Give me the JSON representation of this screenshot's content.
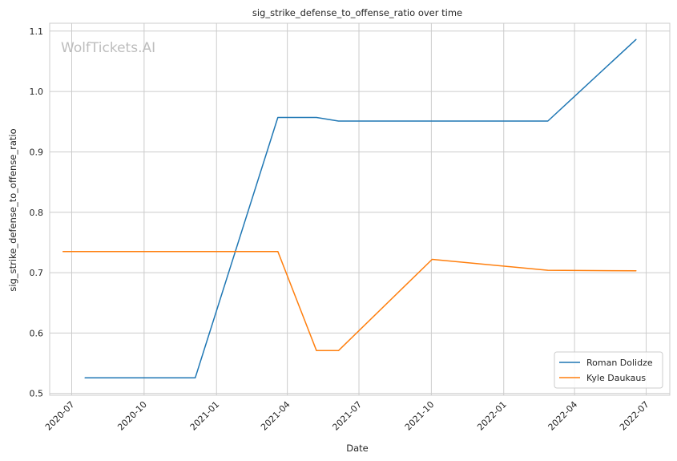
{
  "watermark": "WolfTickets.AI",
  "chart_data": {
    "type": "line",
    "title": "sig_strike_defense_to_offense_ratio over time",
    "xlabel": "Date",
    "ylabel": "sig_strike_defense_to_offense_ratio",
    "xlim": [
      "2020-06-03",
      "2022-07-31"
    ],
    "ylim": [
      0.497,
      1.113
    ],
    "x_ticks": [
      "2020-07",
      "2020-10",
      "2021-01",
      "2021-04",
      "2021-07",
      "2021-10",
      "2022-01",
      "2022-04",
      "2022-07"
    ],
    "y_ticks": [
      0.5,
      0.6,
      0.7,
      0.8,
      0.9,
      1.0,
      1.1
    ],
    "grid": true,
    "legend_position": "lower right",
    "series": [
      {
        "name": "Roman Dolidze",
        "color": "#1f77b4",
        "points": [
          {
            "x": "2020-07-18",
            "y": 0.526
          },
          {
            "x": "2020-12-05",
            "y": 0.526
          },
          {
            "x": "2021-03-20",
            "y": 0.957
          },
          {
            "x": "2021-05-08",
            "y": 0.957
          },
          {
            "x": "2021-06-05",
            "y": 0.951
          },
          {
            "x": "2022-02-26",
            "y": 0.951
          },
          {
            "x": "2022-06-18",
            "y": 1.086
          }
        ]
      },
      {
        "name": "Kyle Daukaus",
        "color": "#ff7f0e",
        "points": [
          {
            "x": "2020-06-20",
            "y": 0.735
          },
          {
            "x": "2021-03-20",
            "y": 0.735
          },
          {
            "x": "2021-05-08",
            "y": 0.571
          },
          {
            "x": "2021-06-05",
            "y": 0.571
          },
          {
            "x": "2021-10-02",
            "y": 0.722
          },
          {
            "x": "2022-02-26",
            "y": 0.704
          },
          {
            "x": "2022-06-18",
            "y": 0.703
          }
        ]
      }
    ]
  }
}
